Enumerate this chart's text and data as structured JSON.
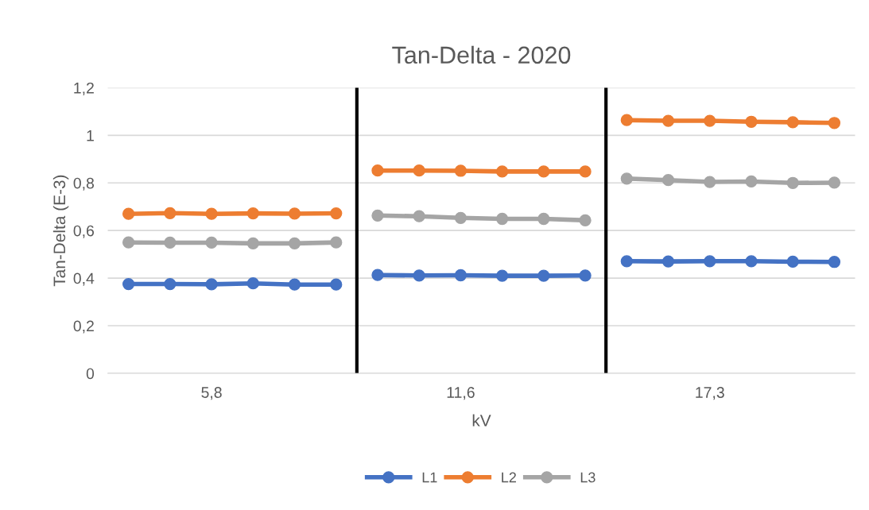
{
  "chart_data": {
    "type": "line",
    "title": "Tan-Delta - 2020",
    "xlabel": "kV",
    "ylabel": "Tan-Delta (E-3)",
    "categories": [
      null,
      null,
      "5,8",
      null,
      null,
      null,
      null,
      null,
      "11,6",
      null,
      null,
      null,
      null,
      null,
      "17,3",
      null,
      null,
      null
    ],
    "ylim": [
      0,
      1.2
    ],
    "yticks": [
      {
        "value": 0,
        "label": "0"
      },
      {
        "value": 0.2,
        "label": "0,2"
      },
      {
        "value": 0.4,
        "label": "0,4"
      },
      {
        "value": 0.6,
        "label": "0,6"
      },
      {
        "value": 0.8,
        "label": "0,8"
      },
      {
        "value": 1,
        "label": "1"
      },
      {
        "value": 1.2,
        "label": "1,2"
      }
    ],
    "series": [
      {
        "name": "L1",
        "color": "#4472c4",
        "values": [
          0.375,
          0.375,
          0.374,
          0.378,
          0.373,
          0.373,
          0.413,
          0.411,
          0.412,
          0.41,
          0.41,
          0.411,
          0.471,
          0.47,
          0.471,
          0.471,
          0.469,
          0.468
        ]
      },
      {
        "name": "L2",
        "color": "#ed7d31",
        "values": [
          0.67,
          0.673,
          0.67,
          0.672,
          0.671,
          0.672,
          0.852,
          0.852,
          0.851,
          0.848,
          0.848,
          0.848,
          1.064,
          1.061,
          1.061,
          1.057,
          1.055,
          1.052
        ]
      },
      {
        "name": "L3",
        "color": "#a5a5a5",
        "values": [
          0.55,
          0.549,
          0.549,
          0.546,
          0.546,
          0.55,
          0.663,
          0.66,
          0.653,
          0.649,
          0.649,
          0.643,
          0.818,
          0.812,
          0.804,
          0.806,
          0.8,
          0.801
        ]
      }
    ],
    "grid": "y",
    "legend": "bottom",
    "marker": "circle",
    "line_style": "solid"
  }
}
